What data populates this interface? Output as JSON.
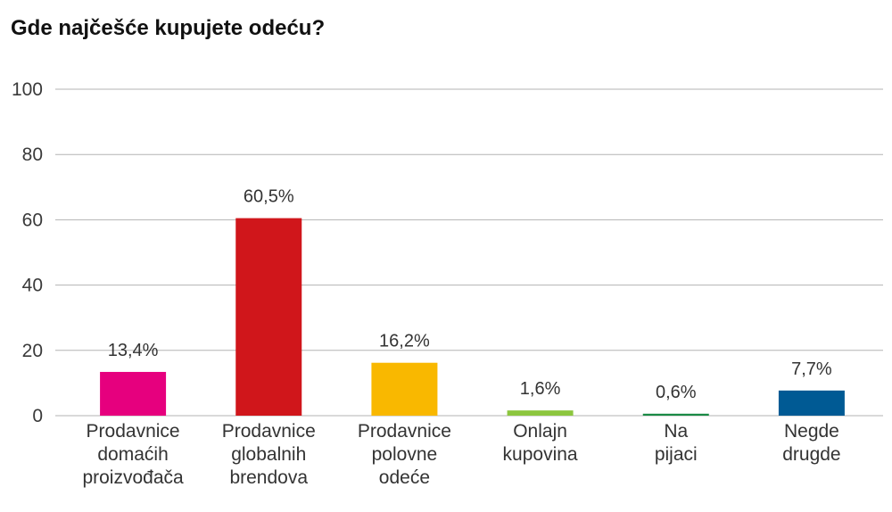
{
  "chart_data": {
    "type": "bar",
    "title": "Gde najčešće kupujete odeću?",
    "categories": [
      [
        "Prodavnice",
        "domaćih",
        "proizvođača"
      ],
      [
        "Prodavnice",
        "globalnih",
        "brendova"
      ],
      [
        "Prodavnice",
        "polovne",
        "odeće"
      ],
      [
        "Onlajn",
        "kupovina"
      ],
      [
        "Na",
        "pijaci"
      ],
      [
        "Negde",
        "drugde"
      ]
    ],
    "values": [
      13.4,
      60.5,
      16.2,
      1.6,
      0.6,
      7.7
    ],
    "data_labels": [
      "13,4%",
      "60,5%",
      "16,2%",
      "1,6%",
      "0,6%",
      "7,7%"
    ],
    "colors": [
      "#e6007e",
      "#d0161b",
      "#f9b800",
      "#8cc63f",
      "#1a8a45",
      "#005a94"
    ],
    "gridline_color": "#b3b3b3",
    "ylim": [
      0,
      100
    ],
    "yticks": [
      "0",
      "20",
      "40",
      "60",
      "80",
      "100"
    ],
    "ytick_values": [
      0,
      20,
      40,
      60,
      80,
      100
    ],
    "grid": true,
    "legend": "none"
  }
}
